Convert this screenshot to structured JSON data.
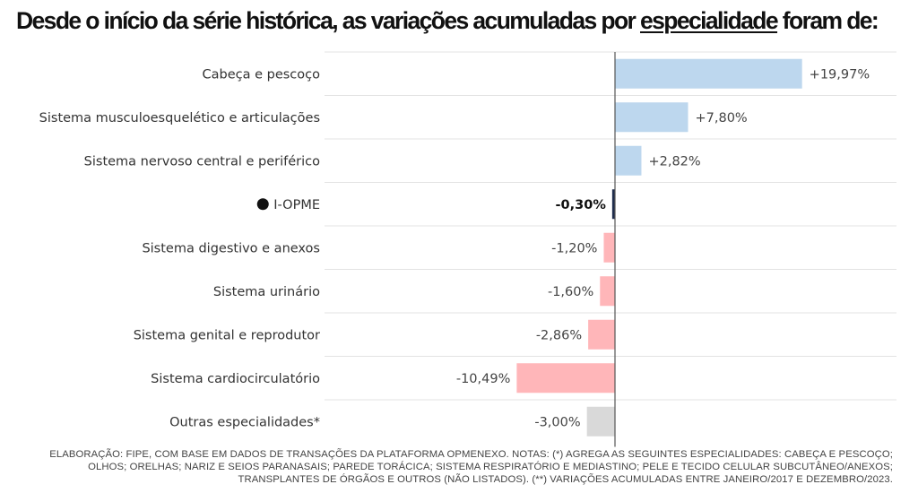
{
  "title": {
    "before": "Desde o início da série histórica, as variações acumuladas por ",
    "underlined": "especialidade",
    "after": " foram de:"
  },
  "chart_data": {
    "type": "bar",
    "orientation": "horizontal",
    "categories": [
      "Cabeça e pescoço",
      "Sistema musculoesquelético e articulações",
      "Sistema nervoso central e periférico",
      "I-OPME",
      "Sistema digestivo e anexos",
      "Sistema urinário",
      "Sistema genital e reprodutor",
      "Sistema cardiocirculatório",
      "Outras especialidades*"
    ],
    "values": [
      19.97,
      7.8,
      2.82,
      -0.3,
      -1.2,
      -1.6,
      -2.86,
      -10.49,
      -3.0
    ],
    "value_labels": [
      "+19,97%",
      "+7,80%",
      "+2,82%",
      "-0,30%",
      "-1,20%",
      "-1,60%",
      "-2,86%",
      "-10,49%",
      "-3,00%"
    ],
    "highlight_category": "I-OPME",
    "colors": {
      "positive": "#bdd7ee",
      "negative": "#ffb6b9",
      "highlight": "#1f2d4d",
      "other": "#d9d9d9",
      "marker": "#111111"
    },
    "xlim": [
      -12,
      21
    ],
    "grid": "horizontal row separators",
    "legend": "none"
  },
  "footnote": {
    "line1": "ELABORAÇÃO: FIPE, COM BASE EM DADOS DE TRANSAÇÕES DA PLATAFORMA OPMENEXO. NOTAS: (*) AGREGA AS SEGUINTES ESPECIALIDADES: CABEÇA E PESCOÇO;",
    "line2": "OLHOS; ORELHAS; NARIZ E SEIOS PARANASAIS; PAREDE TORÁCICA; SISTEMA RESPIRATÓRIO E MEDIASTINO; PELE E TECIDO CELULAR SUBCUTÂNEO/ANEXOS;",
    "line3": "TRANSPLANTES DE ÓRGÃOS E OUTROS (NÃO LISTADOS). (**) VARIAÇÕES ACUMULADAS ENTRE JANEIRO/2017 E DEZEMBRO/2023."
  }
}
